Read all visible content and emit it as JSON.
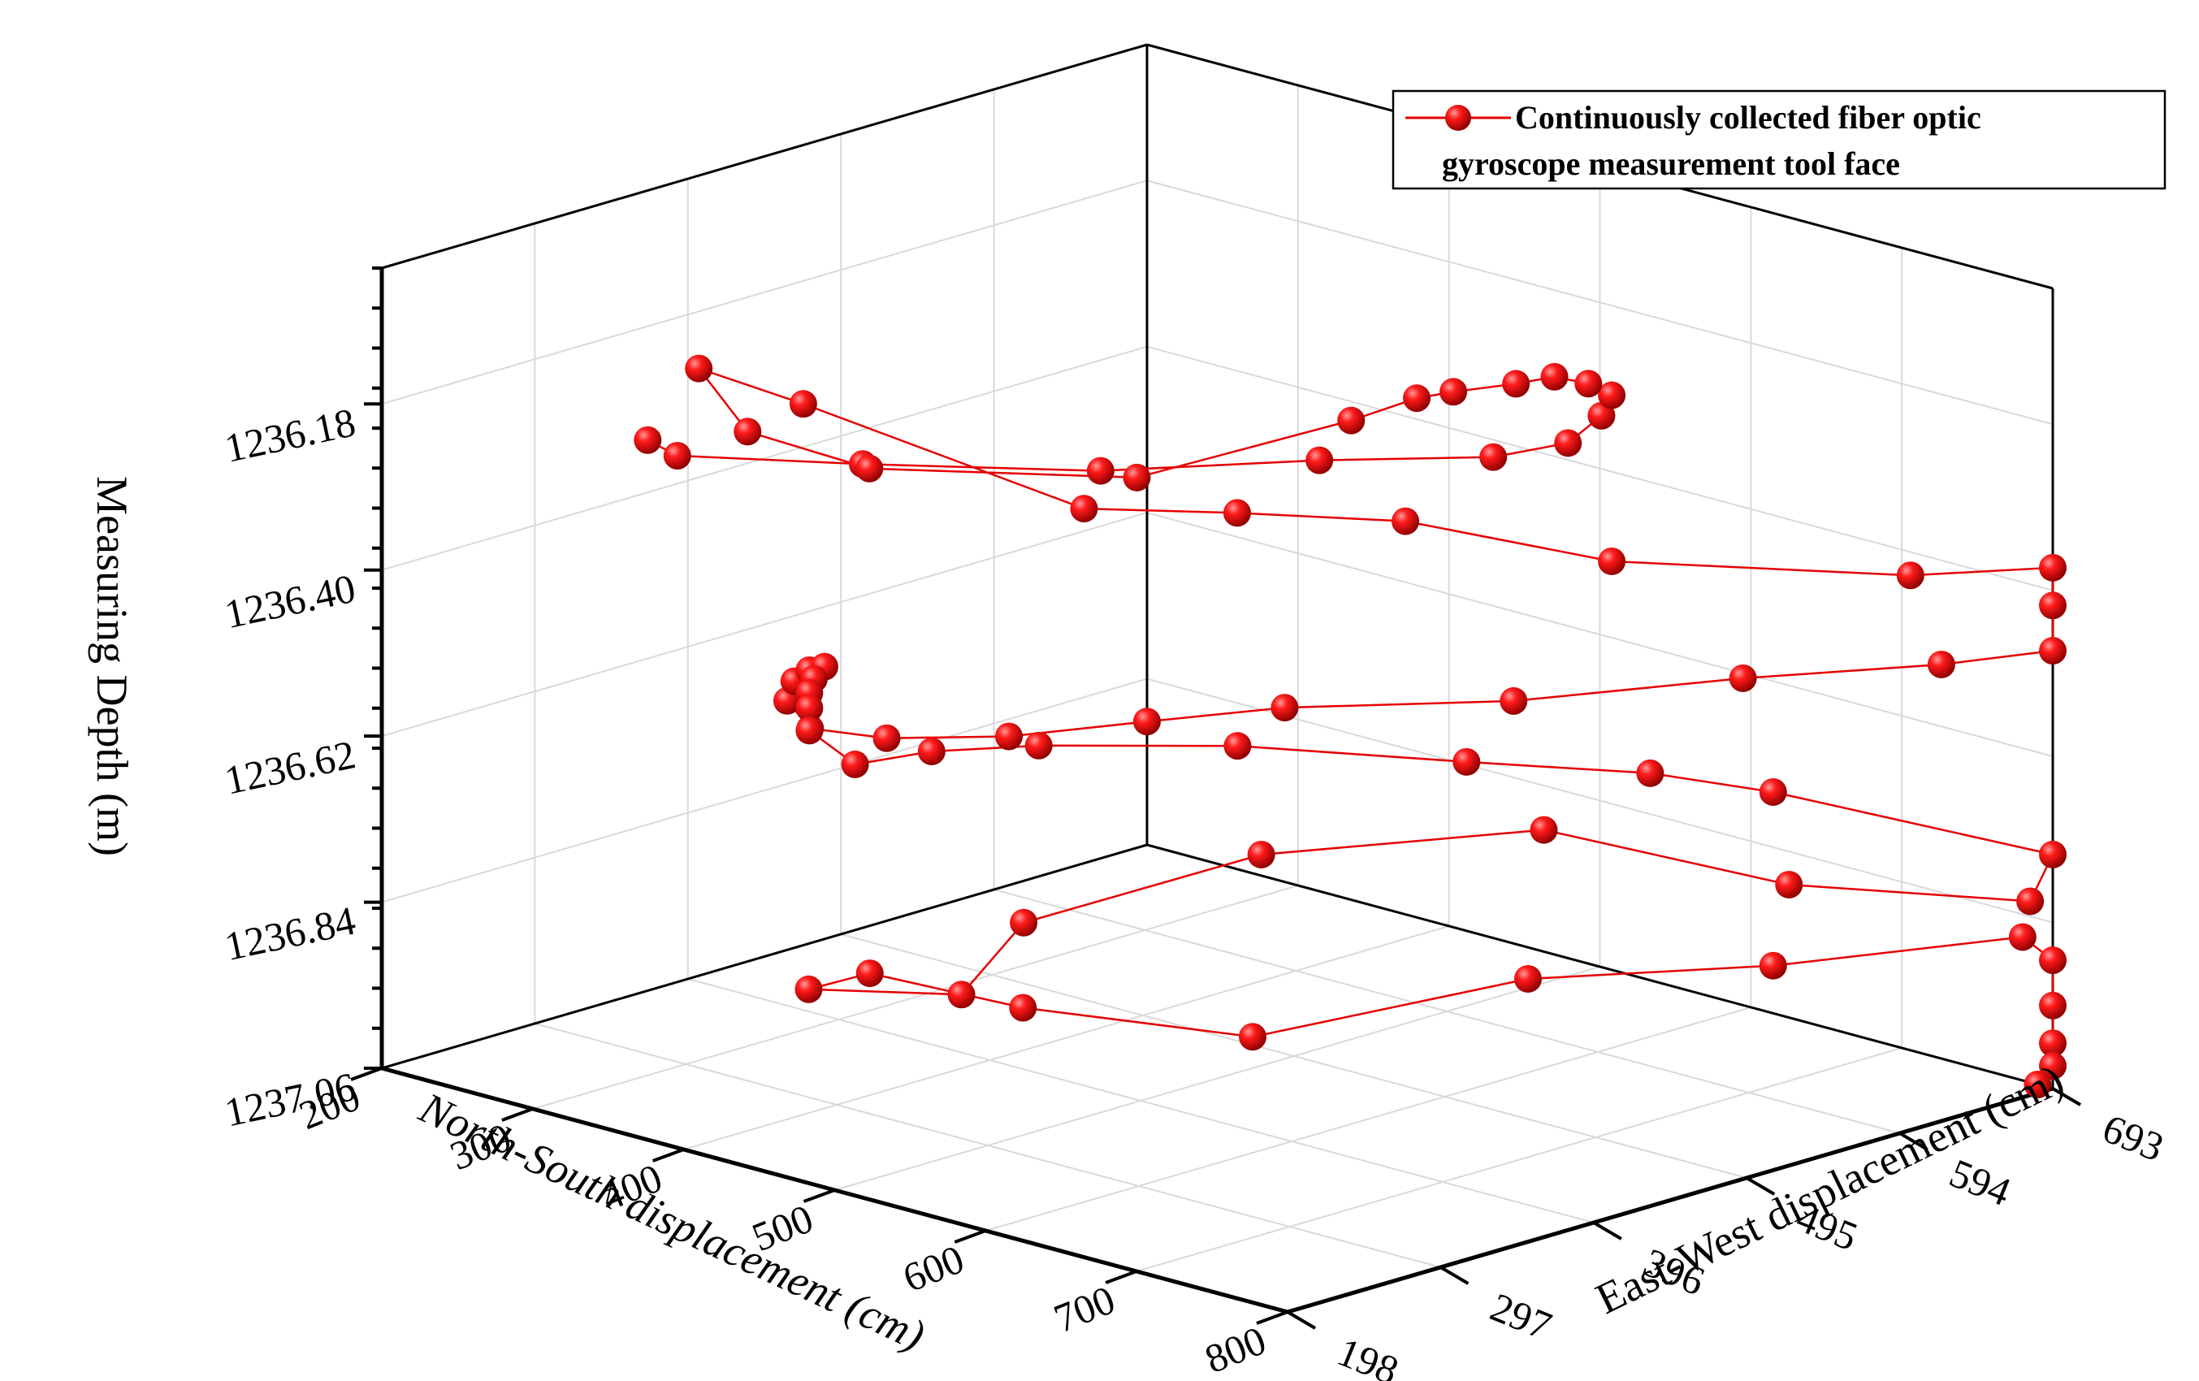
{
  "chart_data": {
    "type": "scatter",
    "subtype": "3d-line-scatter",
    "title": "",
    "xlabel": "North-South displacement (cm)",
    "ylabel": "East-West displacement (cm)",
    "zlabel": "Measuring Depth (m)",
    "x_ticks": [
      "200",
      "300",
      "400",
      "500",
      "600",
      "700",
      "800"
    ],
    "y_ticks": [
      "198",
      "297",
      "396",
      "495",
      "594",
      "693"
    ],
    "z_ticks": [
      "1236.18",
      "1236.40",
      "1236.62",
      "1236.84",
      "1237.06"
    ],
    "xlim": [
      200,
      800
    ],
    "ylim": [
      198,
      693
    ],
    "zlim": [
      1236.0,
      1237.06
    ],
    "z_reversed": true,
    "grid": true,
    "legend_position": "top-right",
    "series": [
      {
        "name": "Continuously collected fiber optic gyroscope measurement tool face",
        "color": "#e60000",
        "points": [
          [
            370,
            204,
            1236.14
          ],
          [
            363,
            230,
            1236.18
          ],
          [
            410,
            304,
            1236.21
          ],
          [
            500,
            370,
            1236.21
          ],
          [
            563,
            450,
            1236.21
          ],
          [
            628,
            499,
            1236.2
          ],
          [
            655,
            521,
            1236.18
          ],
          [
            670,
            528,
            1236.14
          ],
          [
            685,
            520,
            1236.1
          ],
          [
            690,
            500,
            1236.07
          ],
          [
            688,
            480,
            1236.05
          ],
          [
            683,
            460,
            1236.05
          ],
          [
            662,
            440,
            1236.06
          ],
          [
            648,
            430,
            1236.07
          ],
          [
            625,
            410,
            1236.1
          ],
          [
            565,
            330,
            1236.16
          ],
          [
            480,
            240,
            1236.14
          ],
          [
            430,
            210,
            1236.1
          ],
          [
            410,
            198,
            1236.02
          ],
          [
            470,
            207,
            1236.04
          ],
          [
            530,
            330,
            1236.22
          ],
          [
            570,
            390,
            1236.24
          ],
          [
            620,
            450,
            1236.26
          ],
          [
            685,
            520,
            1236.32
          ],
          [
            760,
            640,
            1236.37
          ],
          [
            800,
            693,
            1236.37
          ],
          [
            800,
            693,
            1236.42
          ],
          [
            800,
            693,
            1236.48
          ],
          [
            760,
            660,
            1236.5
          ],
          [
            690,
            600,
            1236.52
          ],
          [
            620,
            520,
            1236.54
          ],
          [
            540,
            450,
            1236.55
          ],
          [
            500,
            400,
            1236.56
          ],
          [
            470,
            340,
            1236.56
          ],
          [
            430,
            300,
            1236.56
          ],
          [
            410,
            270,
            1236.54
          ],
          [
            405,
            260,
            1236.5
          ],
          [
            420,
            250,
            1236.46
          ],
          [
            430,
            250,
            1236.44
          ],
          [
            440,
            250,
            1236.43
          ],
          [
            433,
            250,
            1236.45
          ],
          [
            430,
            250,
            1236.47
          ],
          [
            430,
            250,
            1236.49
          ],
          [
            430,
            250,
            1236.52
          ],
          [
            450,
            260,
            1236.56
          ],
          [
            470,
            290,
            1236.55
          ],
          [
            500,
            330,
            1236.55
          ],
          [
            560,
            400,
            1236.56
          ],
          [
            640,
            470,
            1236.58
          ],
          [
            690,
            540,
            1236.61
          ],
          [
            710,
            600,
            1236.66
          ],
          [
            800,
            693,
            1236.75
          ],
          [
            785,
            693,
            1236.82
          ],
          [
            700,
            620,
            1236.8
          ],
          [
            640,
            520,
            1236.7
          ],
          [
            545,
            430,
            1236.73
          ],
          [
            490,
            330,
            1236.79
          ],
          [
            500,
            280,
            1236.85
          ],
          [
            450,
            230,
            1236.84
          ],
          [
            470,
            250,
            1236.82
          ],
          [
            510,
            310,
            1236.88
          ],
          [
            570,
            400,
            1236.94
          ],
          [
            650,
            500,
            1236.88
          ],
          [
            710,
            600,
            1236.89
          ],
          [
            780,
            693,
            1236.87
          ],
          [
            800,
            693,
            1236.89
          ],
          [
            800,
            693,
            1236.95
          ],
          [
            800,
            693,
            1237.0
          ],
          [
            800,
            693,
            1237.03
          ],
          [
            790,
            693,
            1237.06
          ]
        ]
      }
    ]
  }
}
